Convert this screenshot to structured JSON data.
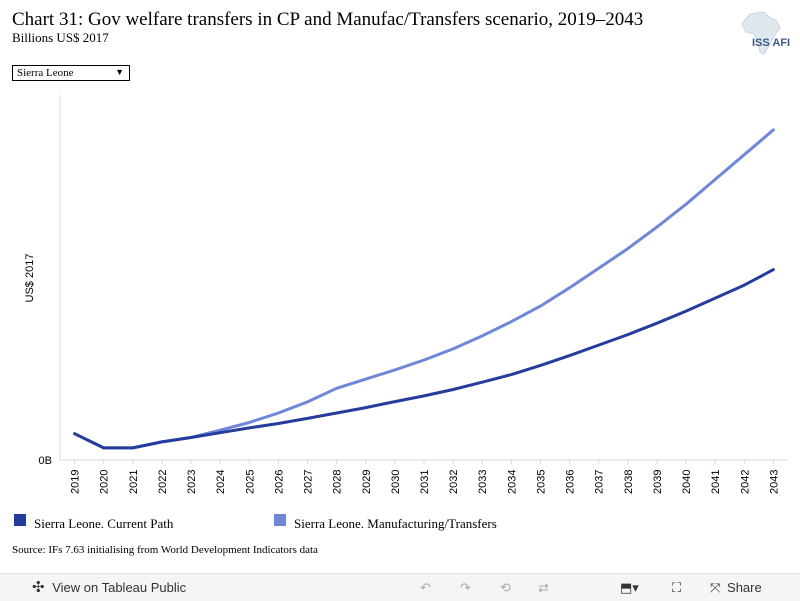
{
  "header": {
    "title": "Chart 31: Gov welfare transfers in CP and Manufac/Transfers scenario, 2019–2043",
    "subtitle": "Billions US$ 2017",
    "logo_text": "ISS AFI"
  },
  "filter": {
    "selected": "Sierra Leone"
  },
  "chart_data": {
    "type": "line",
    "ylabel": "US$ 2017",
    "yticks": [
      "0B"
    ],
    "x": [
      "2019",
      "2020",
      "2021",
      "2022",
      "2023",
      "2024",
      "2025",
      "2026",
      "2027",
      "2028",
      "2029",
      "2030",
      "2031",
      "2032",
      "2033",
      "2034",
      "2035",
      "2036",
      "2037",
      "2038",
      "2039",
      "2040",
      "2041",
      "2042",
      "2043"
    ],
    "series": [
      {
        "name": "Sierra Leone. Current Path",
        "color": "#253c9c",
        "values": [
          0.083,
          0.038,
          0.038,
          0.057,
          0.071,
          0.086,
          0.101,
          0.115,
          0.131,
          0.148,
          0.165,
          0.184,
          0.202,
          0.222,
          0.245,
          0.269,
          0.298,
          0.329,
          0.362,
          0.395,
          0.431,
          0.469,
          0.51,
          0.551,
          0.6
        ]
      },
      {
        "name": "Sierra Leone. Manufacturing/Transfers",
        "color": "#6e87d8",
        "values": [
          0.083,
          0.038,
          0.038,
          0.057,
          0.071,
          0.094,
          0.118,
          0.148,
          0.183,
          0.226,
          0.255,
          0.284,
          0.315,
          0.35,
          0.391,
          0.436,
          0.485,
          0.543,
          0.604,
          0.666,
          0.734,
          0.806,
          0.884,
          0.962,
          1.04
        ]
      }
    ],
    "ylim": [
      0,
      1.15
    ],
    "grid": false,
    "legend": "bottom"
  },
  "source": "Source: IFs 7.63 initialising from World Development Indicators data",
  "toolbar": {
    "view_label": "View on Tableau Public",
    "share_label": "Share"
  }
}
